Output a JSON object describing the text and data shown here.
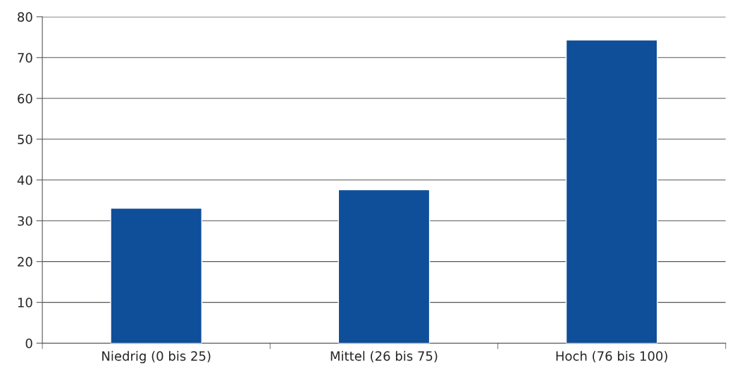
{
  "chart_data": {
    "type": "bar",
    "categories": [
      "Niedrig (0 bis 25)",
      "Mittel (26 bis 75)",
      "Hoch (76 bis 100)"
    ],
    "values": [
      33.1,
      37.6,
      74.3
    ],
    "color": "#0f4e99",
    "ylim": [
      0,
      80
    ],
    "yticks": [
      0,
      10,
      20,
      30,
      40,
      50,
      60,
      70,
      80
    ],
    "grid": "y",
    "legend": false
  }
}
